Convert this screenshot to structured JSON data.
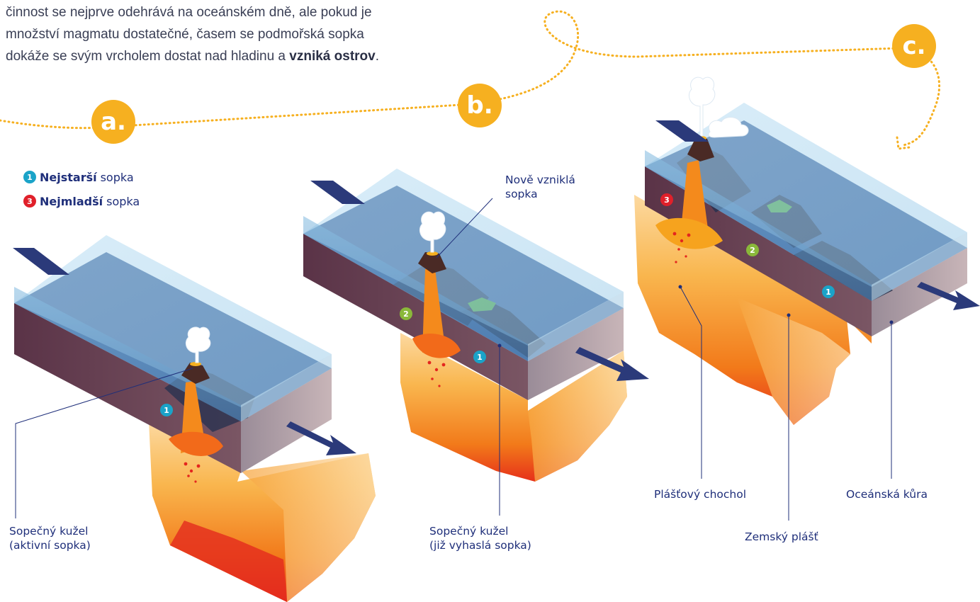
{
  "intro": {
    "line1": "činnost se nejprve odehrává na oceánském dně, ale pokud je",
    "line2": "množství magmatu dostatečné, časem se podmořská sopka",
    "line3_start": "dokáže se svým vrcholem dostat nad hladinu a ",
    "line3_bold": "vzniká ostrov",
    "line3_end": "."
  },
  "steps": {
    "a": "a.",
    "b": "b.",
    "c": "c."
  },
  "legend": {
    "oldest": {
      "num": "1",
      "bold": "Nejstarší",
      "rest": "sopka",
      "color": "#1aa3c8"
    },
    "youngest": {
      "num": "3",
      "bold": "Nejmladší",
      "rest": "sopka",
      "color": "#e0202a"
    }
  },
  "markers": {
    "one": "1",
    "two": "2",
    "three": "3"
  },
  "marker_colors": {
    "one": "#1aa3c8",
    "two": "#8ab83a",
    "three": "#e0202a"
  },
  "labels": {
    "cone_active_1": "Sopečný kužel",
    "cone_active_2": "(aktivní sopka)",
    "new_volcano_1": "Nově vzniklá",
    "new_volcano_2": "sopka",
    "cone_extinct_1": "Sopečný kužel",
    "cone_extinct_2": "(již vyhaslá sopka)",
    "plume": "Plášťový chochol",
    "oceanic_crust": "Oceánská kůra",
    "mantle": "Zemský plášť"
  },
  "colors": {
    "accent": "#f6b020",
    "label_text": "#1f2f7a",
    "crust": "#5e3a4a",
    "water": "#7fb5dc",
    "magma": "#f08a1c"
  }
}
